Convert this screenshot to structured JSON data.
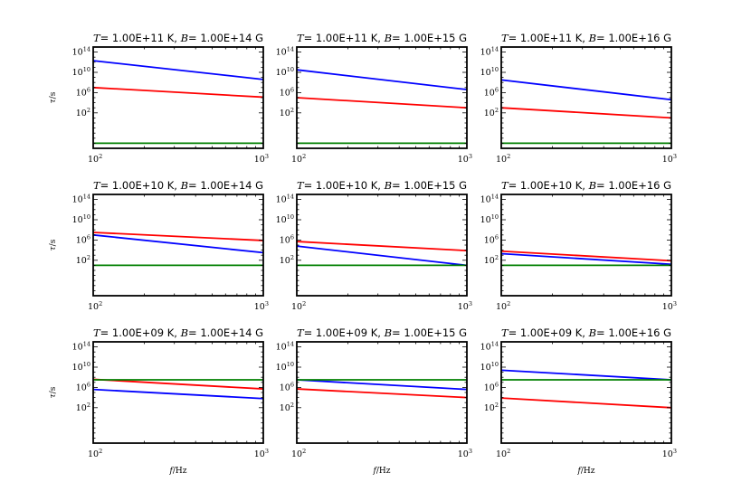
{
  "chart_data": {
    "type": "line",
    "grid": false,
    "xscale": "log",
    "yscale": "log",
    "xlim": [
      100,
      1000
    ],
    "ylim_exp": [
      -5,
      15
    ],
    "xticks": [
      {
        "base": "10",
        "exp": "2"
      },
      {
        "base": "10",
        "exp": "3"
      }
    ],
    "yticks": [
      {
        "val": 2,
        "base": "10",
        "exp": "2"
      },
      {
        "val": 6,
        "base": "10",
        "exp": "6"
      },
      {
        "val": 10,
        "base": "10",
        "exp": "10"
      },
      {
        "val": 14,
        "base": "10",
        "exp": "14"
      }
    ],
    "xlabel": {
      "var": "f",
      "unit": "/Hz"
    },
    "ylabel": {
      "var": "τ",
      "unit": "/s"
    },
    "colors": {
      "red": "#ff0000",
      "blue": "#0000ff",
      "green": "#008000"
    },
    "panels": [
      {
        "T_var": "T",
        "T_eq": "= ",
        "T": "1.00E+11 K,",
        "B_var": "B",
        "B_eq": "= ",
        "B": "1.00E+14 G",
        "series": [
          {
            "color": "red",
            "log_tau": [
              7.0,
              5.1
            ]
          },
          {
            "color": "blue",
            "log_tau": [
              12.3,
              8.6
            ]
          },
          {
            "color": "green",
            "log_tau": [
              -4.0,
              -4.0
            ]
          }
        ]
      },
      {
        "T_var": "T",
        "T_eq": "= ",
        "T": "1.00E+11 K,",
        "B_var": "B",
        "B_eq": "= ",
        "B": "1.00E+15 G",
        "series": [
          {
            "color": "red",
            "log_tau": [
              5.0,
              3.0
            ]
          },
          {
            "color": "blue",
            "log_tau": [
              10.5,
              6.6
            ]
          },
          {
            "color": "green",
            "log_tau": [
              -4.0,
              -4.0
            ]
          }
        ]
      },
      {
        "T_var": "T",
        "T_eq": "= ",
        "T": "1.00E+11 K,",
        "B_var": "B",
        "B_eq": "= ",
        "B": "1.00E+16 G",
        "series": [
          {
            "color": "red",
            "log_tau": [
              3.0,
              1.0
            ]
          },
          {
            "color": "blue",
            "log_tau": [
              8.5,
              4.6
            ]
          },
          {
            "color": "green",
            "log_tau": [
              -4.0,
              -4.0
            ]
          }
        ]
      },
      {
        "T_var": "T",
        "T_eq": "= ",
        "T": "1.00E+10 K,",
        "B_var": "B",
        "B_eq": "= ",
        "B": "1.00E+14 G",
        "series": [
          {
            "color": "red",
            "log_tau": [
              7.5,
              5.9
            ]
          },
          {
            "color": "blue",
            "log_tau": [
              7.0,
              3.5
            ]
          },
          {
            "color": "green",
            "log_tau": [
              1.0,
              1.0
            ]
          }
        ]
      },
      {
        "T_var": "T",
        "T_eq": "= ",
        "T": "1.00E+10 K,",
        "B_var": "B",
        "B_eq": "= ",
        "B": "1.00E+15 G",
        "series": [
          {
            "color": "red",
            "log_tau": [
              5.7,
              3.9
            ]
          },
          {
            "color": "blue",
            "log_tau": [
              4.8,
              1.0
            ]
          },
          {
            "color": "green",
            "log_tau": [
              1.0,
              1.0
            ]
          }
        ]
      },
      {
        "T_var": "T",
        "T_eq": "= ",
        "T": "1.00E+10 K,",
        "B_var": "B",
        "B_eq": "= ",
        "B": "1.00E+16 G",
        "series": [
          {
            "color": "red",
            "log_tau": [
              3.8,
              1.9
            ]
          },
          {
            "color": "blue",
            "log_tau": [
              3.3,
              1.2
            ]
          },
          {
            "color": "green",
            "log_tau": [
              1.0,
              1.0
            ]
          }
        ]
      },
      {
        "T_var": "T",
        "T_eq": "= ",
        "T": "1.00E+09 K,",
        "B_var": "B",
        "B_eq": "= ",
        "B": "1.00E+14 G",
        "series": [
          {
            "color": "red",
            "log_tau": [
              7.6,
              5.7
            ]
          },
          {
            "color": "blue",
            "log_tau": [
              5.6,
              3.8
            ]
          },
          {
            "color": "green",
            "log_tau": [
              7.5,
              7.5
            ]
          }
        ]
      },
      {
        "T_var": "T",
        "T_eq": "= ",
        "T": "1.00E+09 K,",
        "B_var": "B",
        "B_eq": "= ",
        "B": "1.00E+15 G",
        "series": [
          {
            "color": "red",
            "log_tau": [
              5.7,
              4.0
            ]
          },
          {
            "color": "blue",
            "log_tau": [
              7.5,
              5.6
            ]
          },
          {
            "color": "green",
            "log_tau": [
              7.5,
              7.5
            ]
          }
        ]
      },
      {
        "T_var": "T",
        "T_eq": "= ",
        "T": "1.00E+09 K,",
        "B_var": "B",
        "B_eq": "= ",
        "B": "1.00E+16 G",
        "series": [
          {
            "color": "red",
            "log_tau": [
              3.9,
              2.0
            ]
          },
          {
            "color": "blue",
            "log_tau": [
              9.4,
              7.5
            ]
          },
          {
            "color": "green",
            "log_tau": [
              7.5,
              7.5
            ]
          }
        ]
      }
    ]
  }
}
